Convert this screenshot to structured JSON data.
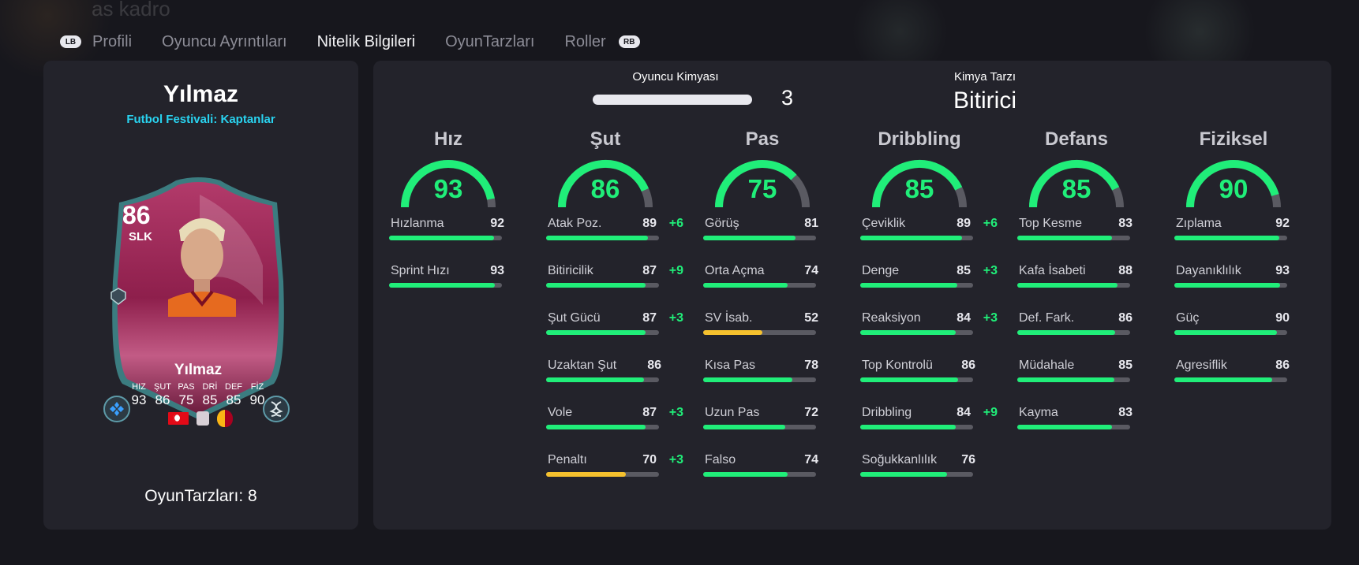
{
  "background": {
    "faded_text": "as kadro"
  },
  "tabs": {
    "lb": "LB",
    "rb": "RB",
    "items": [
      {
        "label": "Profili"
      },
      {
        "label": "Oyuncu Ayrıntıları"
      },
      {
        "label": "Nitelik Bilgileri",
        "active": true
      },
      {
        "label": "OyunTarzları"
      },
      {
        "label": "Roller"
      }
    ]
  },
  "player": {
    "name": "Yılmaz",
    "subtitle": "Futbol Festivali: Kaptanlar",
    "card": {
      "rating": "86",
      "position": "SLK",
      "name": "Yılmaz",
      "stats": [
        {
          "label": "HIZ",
          "value": "93"
        },
        {
          "label": "ŞUT",
          "value": "86"
        },
        {
          "label": "PAS",
          "value": "75"
        },
        {
          "label": "DRİ",
          "value": "85"
        },
        {
          "label": "DEF",
          "value": "85"
        },
        {
          "label": "FİZ",
          "value": "90"
        }
      ]
    },
    "playstyles": "OyunTarzları: 8"
  },
  "chemistry": {
    "label": "Oyuncu Kimyası",
    "value": "3",
    "style_label": "Kimya Tarzı",
    "style_value": "Bitirici"
  },
  "colors": {
    "green": "#20ee79",
    "yellow": "#f5c12e",
    "panel": "#23232b"
  },
  "attributes": [
    {
      "title": "Hız",
      "value": "93",
      "stats": [
        {
          "name": "Hızlanma",
          "value": "92",
          "bonus": ""
        },
        {
          "name": "Sprint Hızı",
          "value": "93",
          "bonus": ""
        }
      ]
    },
    {
      "title": "Şut",
      "value": "86",
      "stats": [
        {
          "name": "Atak Poz.",
          "value": "89",
          "bonus": "+6"
        },
        {
          "name": "Bitiricilik",
          "value": "87",
          "bonus": "+9"
        },
        {
          "name": "Şut Gücü",
          "value": "87",
          "bonus": "+3"
        },
        {
          "name": "Uzaktan Şut",
          "value": "86",
          "bonus": ""
        },
        {
          "name": "Vole",
          "value": "87",
          "bonus": "+3"
        },
        {
          "name": "Penaltı",
          "value": "70",
          "bonus": "+3"
        }
      ]
    },
    {
      "title": "Pas",
      "value": "75",
      "stats": [
        {
          "name": "Görüş",
          "value": "81",
          "bonus": ""
        },
        {
          "name": "Orta Açma",
          "value": "74",
          "bonus": ""
        },
        {
          "name": "SV İsab.",
          "value": "52",
          "bonus": ""
        },
        {
          "name": "Kısa Pas",
          "value": "78",
          "bonus": ""
        },
        {
          "name": "Uzun Pas",
          "value": "72",
          "bonus": ""
        },
        {
          "name": "Falso",
          "value": "74",
          "bonus": ""
        }
      ]
    },
    {
      "title": "Dribbling",
      "value": "85",
      "stats": [
        {
          "name": "Çeviklik",
          "value": "89",
          "bonus": "+6"
        },
        {
          "name": "Denge",
          "value": "85",
          "bonus": "+3"
        },
        {
          "name": "Reaksiyon",
          "value": "84",
          "bonus": "+3"
        },
        {
          "name": "Top Kontrolü",
          "value": "86",
          "bonus": ""
        },
        {
          "name": "Dribbling",
          "value": "84",
          "bonus": "+9"
        },
        {
          "name": "Soğukkanlılık",
          "value": "76",
          "bonus": ""
        }
      ]
    },
    {
      "title": "Defans",
      "value": "85",
      "stats": [
        {
          "name": "Top Kesme",
          "value": "83",
          "bonus": ""
        },
        {
          "name": "Kafa İsabeti",
          "value": "88",
          "bonus": ""
        },
        {
          "name": "Def. Fark.",
          "value": "86",
          "bonus": ""
        },
        {
          "name": "Müdahale",
          "value": "85",
          "bonus": ""
        },
        {
          "name": "Kayma",
          "value": "83",
          "bonus": ""
        }
      ]
    },
    {
      "title": "Fiziksel",
      "value": "90",
      "stats": [
        {
          "name": "Zıplama",
          "value": "92",
          "bonus": ""
        },
        {
          "name": "Dayanıklılık",
          "value": "93",
          "bonus": ""
        },
        {
          "name": "Güç",
          "value": "90",
          "bonus": ""
        },
        {
          "name": "Agresiflik",
          "value": "86",
          "bonus": ""
        }
      ]
    }
  ]
}
